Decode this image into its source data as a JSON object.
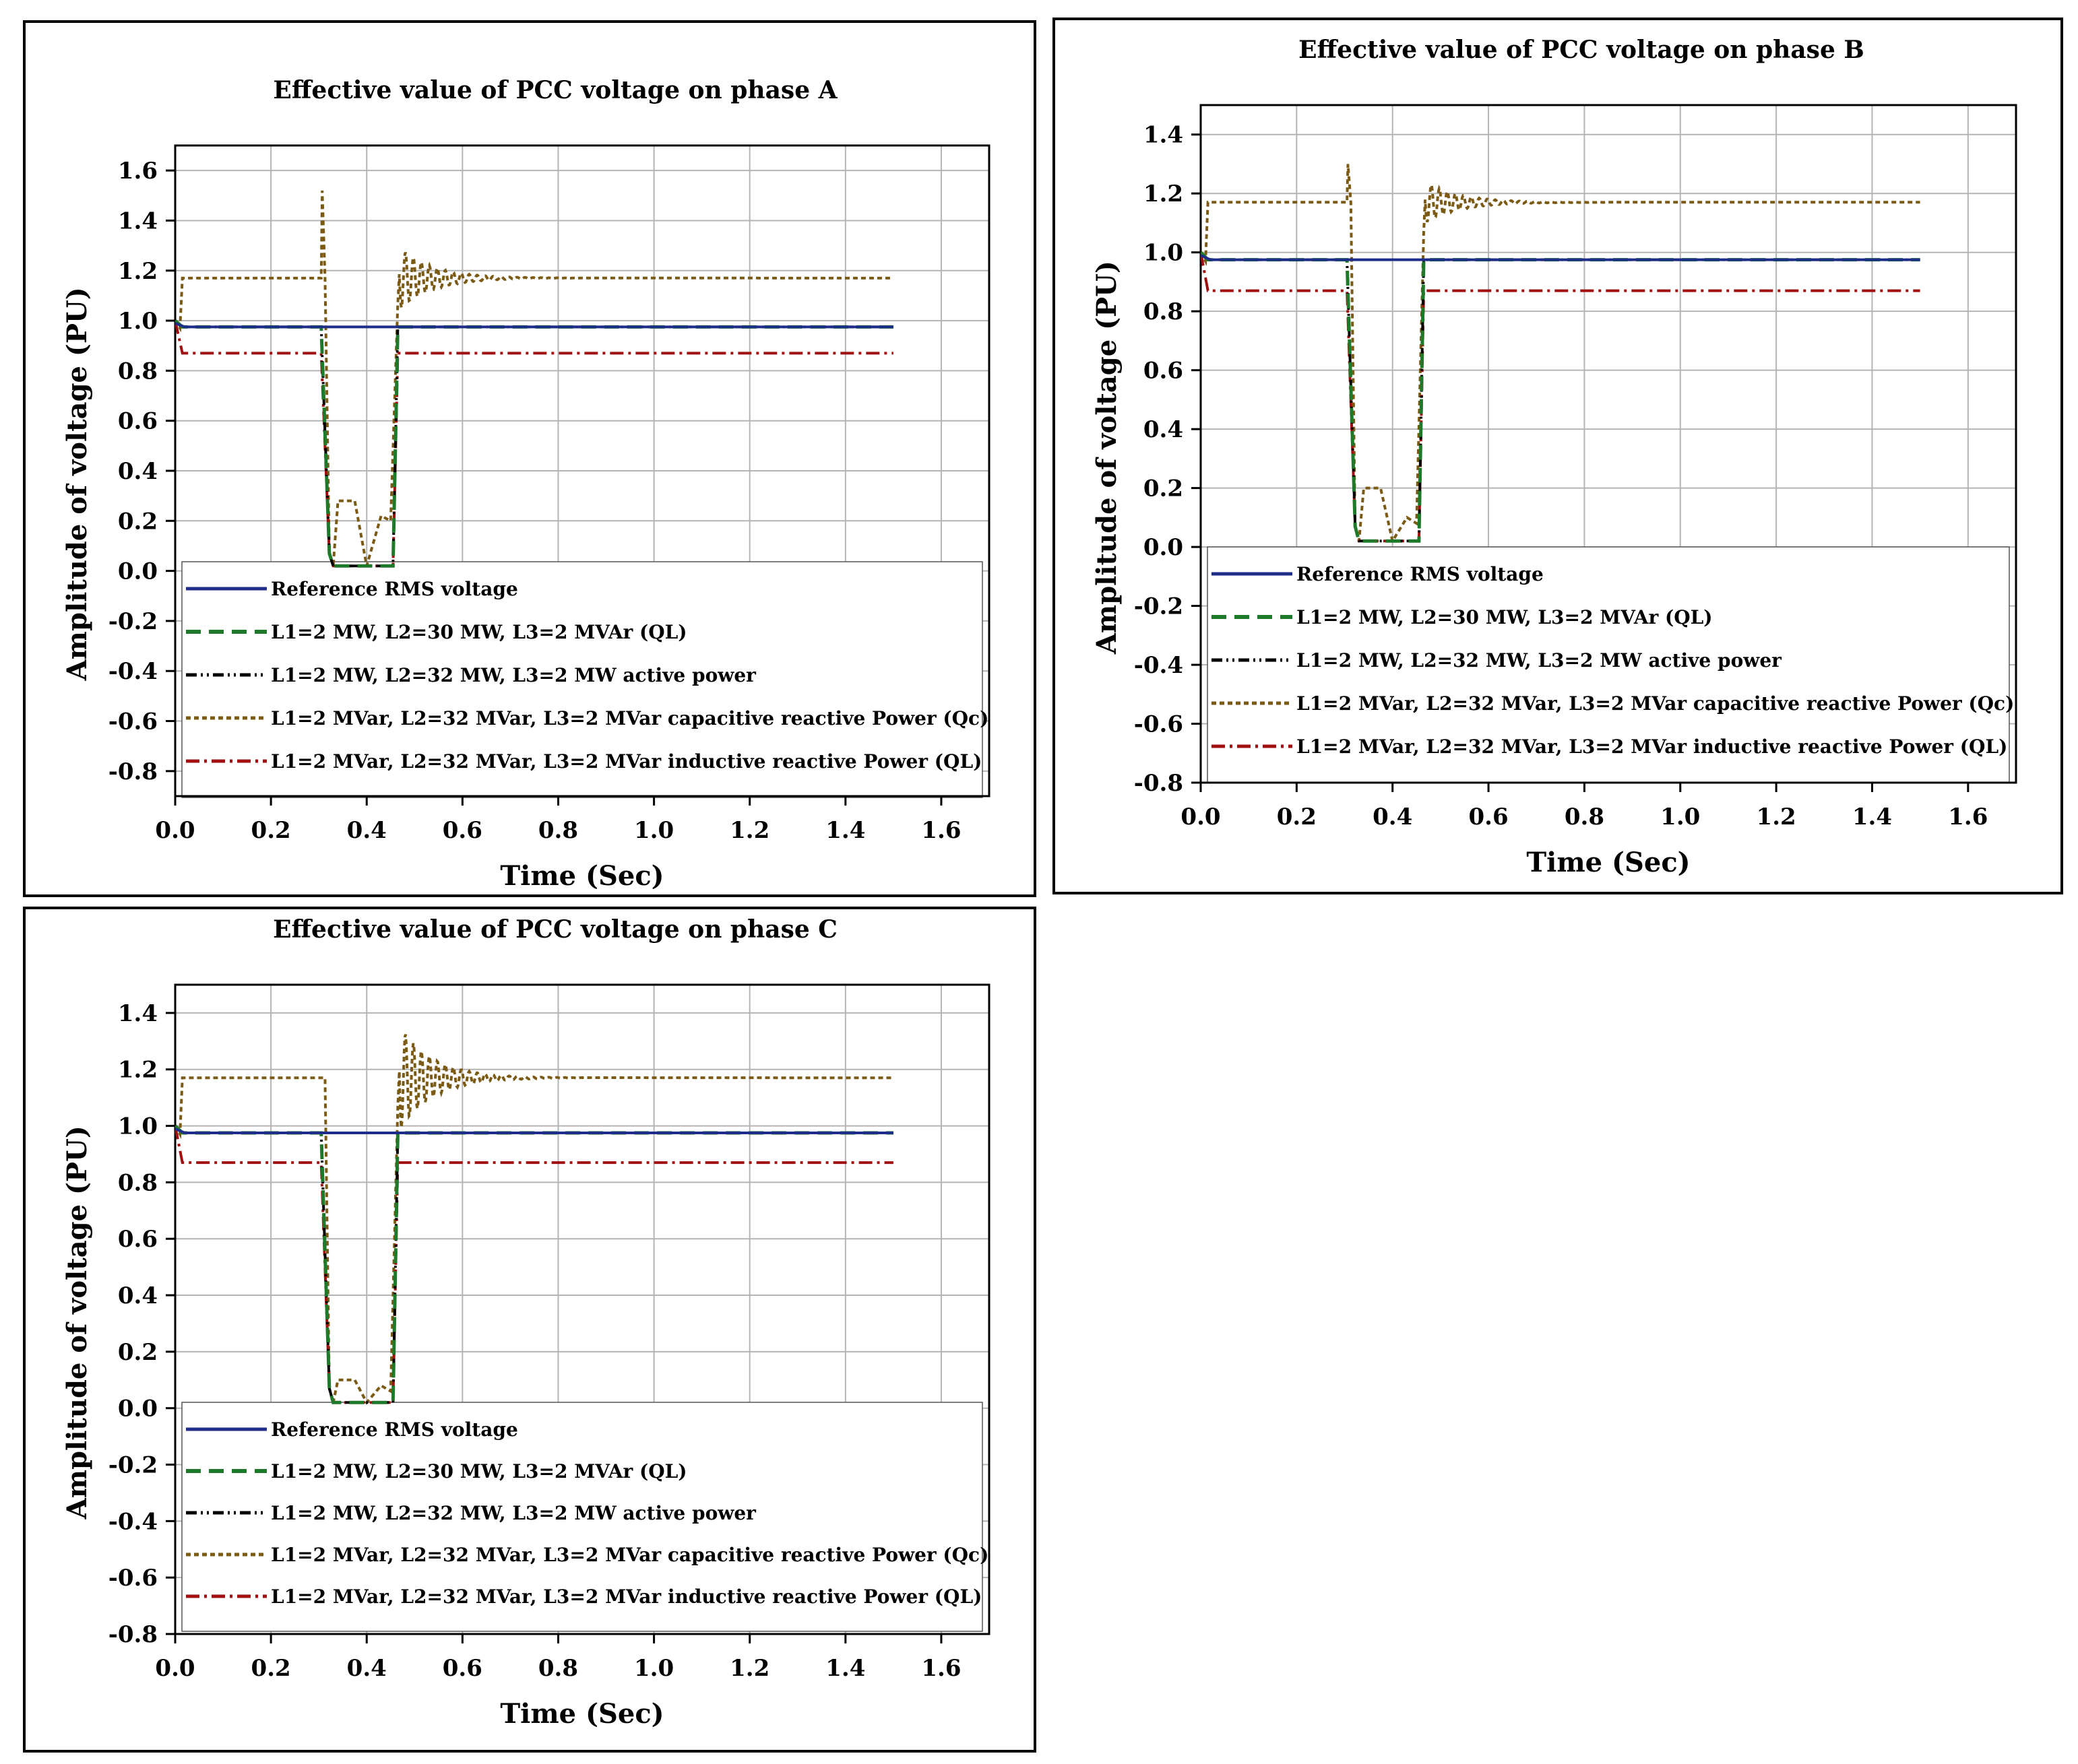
{
  "colors": {
    "reference": "#1f2d8a",
    "ql30": "#1e7a2a",
    "active": "#000000",
    "capacitive": "#7a5a14",
    "inductive": "#a01010",
    "grid": "#b4b4b4"
  },
  "legend_labels": [
    "Reference RMS voltage",
    "L1=2 MW, L2=30 MW, L3=2 MVAr (QL)",
    "L1=2 MW, L2=32 MW, L3=2 MW active power",
    "L1=2 MVar, L2=32 MVar, L3=2 MVar capacitive reactive Power (Qc)",
    "L1=2 MVar, L2=32 MVar, L3=2 MVar inductive  reactive Power (QL)"
  ],
  "chart_data": [
    {
      "type": "line",
      "title": "Effective value of PCC voltage on phase A",
      "xlabel": "Time (Sec)",
      "ylabel": "Amplitude of voltage (PU)",
      "xlim": [
        0,
        1.7
      ],
      "ylim": [
        -0.9,
        1.7
      ],
      "xticks": [
        0,
        0.2,
        0.4,
        0.6,
        0.8,
        1.0,
        1.2,
        1.4,
        1.6
      ],
      "xtick_labels": [
        "0.0",
        "0.2",
        "0.4",
        "0.6",
        "0.8",
        "1.0",
        "1.2",
        "1.4",
        "1.6"
      ],
      "yticks": [
        -0.8,
        -0.6,
        -0.4,
        -0.2,
        0,
        0.2,
        0.4,
        0.6,
        0.8,
        1.0,
        1.2,
        1.4,
        1.6
      ],
      "ytick_labels": [
        "-0.8",
        "-0.6",
        "-0.4",
        "-0.2",
        "0.0",
        "0.2",
        "0.4",
        "0.6",
        "0.8",
        "1.0",
        "1.2",
        "1.4",
        "1.6"
      ],
      "legend_location": "bottom",
      "fault": {
        "start": 0.31,
        "end": 0.46
      },
      "series": [
        {
          "name": "Reference RMS voltage",
          "pre": 0.975,
          "dip": 0.975,
          "post": 0.975,
          "start_peak": 0.99,
          "end": 1.5
        },
        {
          "name": "L1=2 MW, L2=30 MW, L3=2 MVAr (QL)",
          "pre": 0.975,
          "dip": 0.02,
          "post": 0.975,
          "start_peak": 1.0,
          "end": 1.5
        },
        {
          "name": "L1=2 MW, L2=32 MW, L3=2 MW active power",
          "pre": 0.975,
          "dip": 0.02,
          "post": 0.975,
          "start_peak": 1.0,
          "end": 1.5
        },
        {
          "name": "L1=2 MVar, L2=32 MVar, L3=2 MVar capacitive reactive Power (Qc)",
          "pre": 1.17,
          "dip": 0.02,
          "post": 1.17,
          "start_peak": 1.0,
          "spike": 1.52,
          "overshoot": 1.31,
          "dip_bumps": [
            0.28,
            0.22
          ],
          "end": 1.5
        },
        {
          "name": "L1=2 MVar, L2=32 MVar, L3=2 MVar inductive  reactive Power (QL)",
          "pre": 0.87,
          "dip": 0.02,
          "post": 0.87,
          "start_peak": 1.0,
          "end": 1.5
        }
      ]
    },
    {
      "type": "line",
      "title": "Effective value of PCC voltage on phase B",
      "xlabel": "Time (Sec)",
      "ylabel": "Amplitude of voltage (PU)",
      "xlim": [
        0,
        1.7
      ],
      "ylim": [
        -0.8,
        1.5
      ],
      "xticks": [
        0,
        0.2,
        0.4,
        0.6,
        0.8,
        1.0,
        1.2,
        1.4,
        1.6
      ],
      "xtick_labels": [
        "0.0",
        "0.2",
        "0.4",
        "0.6",
        "0.8",
        "1.0",
        "1.2",
        "1.4",
        "1.6"
      ],
      "yticks": [
        -0.8,
        -0.6,
        -0.4,
        -0.2,
        0,
        0.2,
        0.4,
        0.6,
        0.8,
        1.0,
        1.2,
        1.4
      ],
      "ytick_labels": [
        "-0.8",
        "-0.6",
        "-0.4",
        "-0.2",
        "0.0",
        "0.2",
        "0.4",
        "0.6",
        "0.8",
        "1.0",
        "1.2",
        "1.4"
      ],
      "legend_location": "bottom",
      "fault": {
        "start": 0.31,
        "end": 0.46
      },
      "series": [
        {
          "name": "Reference RMS voltage",
          "pre": 0.975,
          "dip": 0.975,
          "post": 0.975,
          "start_peak": 0.99,
          "end": 1.5
        },
        {
          "name": "L1=2 MW, L2=30 MW, L3=2 MVAr (QL)",
          "pre": 0.975,
          "dip": 0.02,
          "post": 0.975,
          "start_peak": 1.0,
          "end": 1.5
        },
        {
          "name": "L1=2 MW, L2=32 MW, L3=2 MW active power",
          "pre": 0.975,
          "dip": 0.02,
          "post": 0.975,
          "start_peak": 1.0,
          "end": 1.5
        },
        {
          "name": "L1=2 MVar, L2=32 MVar, L3=2 MVar capacitive reactive Power (Qc)",
          "pre": 1.17,
          "dip": 0.02,
          "post": 1.17,
          "start_peak": 1.0,
          "spike": 1.3,
          "overshoot": 1.25,
          "dip_bumps": [
            0.2,
            0.1
          ],
          "end": 1.5
        },
        {
          "name": "L1=2 MVar, L2=32 MVar, L3=2 MVar inductive  reactive Power (QL)",
          "pre": 0.87,
          "dip": 0.02,
          "post": 0.87,
          "start_peak": 1.0,
          "end": 1.5
        }
      ]
    },
    {
      "type": "line",
      "title": "Effective value of PCC voltage on phase C",
      "xlabel": "Time (Sec)",
      "ylabel": "Amplitude of voltage (PU)",
      "xlim": [
        0,
        1.7
      ],
      "ylim": [
        -0.8,
        1.5
      ],
      "xticks": [
        0,
        0.2,
        0.4,
        0.6,
        0.8,
        1.0,
        1.2,
        1.4,
        1.6
      ],
      "xtick_labels": [
        "0.0",
        "0.2",
        "0.4",
        "0.6",
        "0.8",
        "1.0",
        "1.2",
        "1.4",
        "1.6"
      ],
      "yticks": [
        -0.8,
        -0.6,
        -0.4,
        -0.2,
        0,
        0.2,
        0.4,
        0.6,
        0.8,
        1.0,
        1.2,
        1.4
      ],
      "ytick_labels": [
        "-0.8",
        "-0.6",
        "-0.4",
        "-0.2",
        "0.0",
        "0.2",
        "0.4",
        "0.6",
        "0.8",
        "1.0",
        "1.2",
        "1.4"
      ],
      "legend_location": "bottom",
      "fault": {
        "start": 0.31,
        "end": 0.46
      },
      "series": [
        {
          "name": "Reference RMS voltage",
          "pre": 0.975,
          "dip": 0.975,
          "post": 0.975,
          "start_peak": 0.99,
          "end": 1.5
        },
        {
          "name": "L1=2 MW, L2=30 MW, L3=2 MVAr (QL)",
          "pre": 0.975,
          "dip": 0.02,
          "post": 0.975,
          "start_peak": 1.0,
          "end": 1.5
        },
        {
          "name": "L1=2 MW, L2=32 MW, L3=2 MW active power",
          "pre": 0.975,
          "dip": 0.02,
          "post": 0.975,
          "start_peak": 1.0,
          "end": 1.5
        },
        {
          "name": "L1=2 MVar, L2=32 MVar, L3=2 MVar capacitive reactive Power (Qc)",
          "pre": 1.17,
          "dip": 0.02,
          "post": 1.17,
          "start_peak": 1.0,
          "spike": 1.17,
          "overshoot": 1.38,
          "dip_bumps": [
            0.1,
            0.08
          ],
          "end": 1.5
        },
        {
          "name": "L1=2 MVar, L2=32 MVar, L3=2 MVar inductive  reactive Power (QL)",
          "pre": 0.87,
          "dip": 0.02,
          "post": 0.87,
          "start_peak": 1.0,
          "end": 1.5
        }
      ]
    }
  ]
}
